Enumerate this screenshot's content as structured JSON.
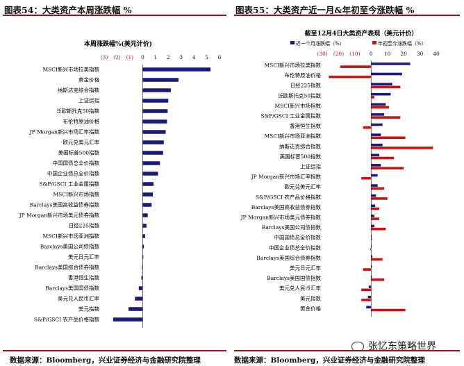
{
  "left_panel": {
    "header": "图表54：大类资产本周涨跌幅 %",
    "footer": "数据来源：Bloomberg，兴业证券经济与金融研究院整理"
  },
  "right_panel": {
    "header": "图表55：大类资产近一月&年初至今涨跌幅 %",
    "footer": "数据来源：Bloomberg，兴业证券经济与金融研究院整理"
  },
  "watermark": "张忆东策略世界",
  "colors": {
    "navy": "#1a1a7a",
    "red": "#cc1111",
    "rule": "#8b1a1a"
  },
  "chart_data": [
    {
      "type": "bar",
      "orientation": "horizontal",
      "title": "本周涨跌幅%(美元计价)",
      "xticks": [
        "(3)",
        "(2)",
        "(1)",
        "0",
        "1",
        "2",
        "3",
        "4",
        "5",
        "6"
      ],
      "xlim": [
        -3,
        6
      ],
      "categories": [
        "MSCI新兴市场拉美指数",
        "黄金价格",
        "纳斯达克综合指数",
        "上证综指",
        "泛欧斯托克50指数",
        "布伦特原油价格",
        "JP Morgan新兴市场汇率指数",
        "欧元兑美元汇率",
        "美国标普500指数",
        "中国国债总全价指数",
        "中国企业债总全价指数",
        "S&P/GSCI 工业金属指数",
        "MSCI新兴市场指数",
        "Barclays美国高收益债券指数",
        "JP Morgan新兴市场美元债券指数",
        "日经225指数",
        "MSCI新兴市场亚洲指数",
        "Barclays美国公司债指数",
        "美元日元汇率",
        "Barclays美国综合债券指数",
        "香港恒生指数",
        "Barclays美国国债指数",
        "美元兑人民币汇率",
        "美元指数",
        "S&P/GSCI 农产品价格指数"
      ],
      "values": [
        5.3,
        2.8,
        2.2,
        2.0,
        1.95,
        1.9,
        1.8,
        1.65,
        1.6,
        1.35,
        1.2,
        0.85,
        0.8,
        0.7,
        0.4,
        0.3,
        0.2,
        0.1,
        0.05,
        -0.05,
        -0.1,
        -0.3,
        -0.6,
        -1.1,
        -2.3
      ]
    },
    {
      "type": "bar",
      "orientation": "horizontal",
      "title": "截至12月4日大类资产表现（美元计价）",
      "xticks": [
        "(30)",
        "(20)",
        "(10)",
        "0",
        "10",
        "20",
        "30",
        "40"
      ],
      "xlim": [
        -30,
        40
      ],
      "categories": [
        "MSCI新兴市场拉美指数",
        "布伦特原油价格",
        "日经225指数",
        "泛欧斯托克50指数",
        "MSCI新兴市场指数",
        "S&P/GSCI 工业金属指数",
        "香港恒生指数",
        "MSCI新兴市场亚洲指数",
        "纳斯达克综合指数",
        "美国标普500指数",
        "上证综指",
        "JP Morgan新兴市场汇率指数",
        "欧元兑美元汇率",
        "S&P/GSCI 农产品价格指数",
        "Barclays美国高收益债券指数",
        "JP Morgan新兴市场美元债券指数",
        "Barclays美国公司债指数",
        "中国国债总全价指数",
        "中国企业债总全价指数",
        "Barclays美国综合债券指数",
        "美元日元汇率",
        "Barclays美国国债指数",
        "美元兑人民币汇率",
        "美元指数",
        "黄金价格"
      ],
      "series": [
        {
          "name": "近一个月涨跌幅（%）",
          "values": [
            24,
            19,
            13,
            12,
            9,
            8,
            7,
            6,
            7,
            5,
            6,
            4,
            4,
            3,
            2.5,
            2,
            2,
            0.3,
            0.2,
            0.8,
            0.5,
            0.5,
            -1.5,
            -2,
            -3
          ]
        },
        {
          "name": "年初至今涨跌幅（%）",
          "values": [
            -19,
            -26,
            18,
            2,
            11,
            18,
            -5,
            21,
            38,
            14,
            20,
            -6,
            8,
            10,
            5,
            5,
            9,
            0.5,
            -0.5,
            7,
            -5,
            8,
            -6,
            -6,
            21
          ]
        }
      ]
    }
  ]
}
